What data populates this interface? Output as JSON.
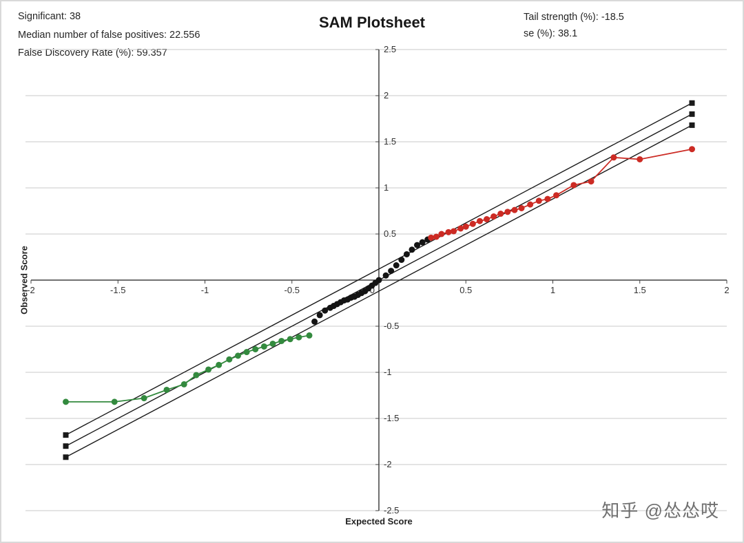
{
  "stats": {
    "significant": "Significant: 38",
    "median_false_positives": "Median number of false positives: 22.556",
    "fdr": "False Discovery Rate (%): 59.357",
    "tail_strength": "Tail strength (%): -18.5",
    "se": "se (%): 38.1"
  },
  "watermark": "知乎 @怂怂哎",
  "chart_data": {
    "type": "scatter",
    "title": "SAM Plotsheet",
    "xlabel": "Expected Score",
    "ylabel": "Observed Score",
    "xlim": [
      -2,
      2
    ],
    "ylim": [
      -2.5,
      2.5
    ],
    "tick_step": 0.5,
    "grid": "horizontal",
    "legend": "none",
    "xticks": [
      "-2",
      "-1.5",
      "-1",
      "-0.5",
      "0",
      "0.5",
      "1",
      "1.5",
      "2"
    ],
    "yticks": [
      "2.5",
      "2",
      "1.5",
      "1",
      "0.5",
      "-0.5",
      "-1",
      "-1.5",
      "-2",
      "-2.5"
    ],
    "colors": {
      "grid": "#c9c9c9",
      "axis": "#404040",
      "line": "#1a1a1a",
      "nonsignificant": "#141414",
      "positive": "#cc2b24",
      "negative": "#338a3e"
    },
    "series": [
      {
        "name": "upper-band-line",
        "color": "#1a1a1a",
        "line": true,
        "width": 1.4,
        "marker": "square",
        "points": [
          [
            -1.8,
            -1.68
          ],
          [
            1.8,
            1.92
          ]
        ]
      },
      {
        "name": "identity-line",
        "color": "#1a1a1a",
        "line": true,
        "width": 1.4,
        "marker": "square",
        "points": [
          [
            -1.8,
            -1.8
          ],
          [
            1.8,
            1.8
          ]
        ]
      },
      {
        "name": "lower-band-line",
        "color": "#1a1a1a",
        "line": true,
        "width": 1.4,
        "marker": "square",
        "points": [
          [
            -1.8,
            -1.92
          ],
          [
            1.8,
            1.68
          ]
        ]
      },
      {
        "name": "significant-negative-genes",
        "color": "#338a3e",
        "line": true,
        "width": 1.8,
        "marker": "circle",
        "points": [
          [
            -1.8,
            -1.32
          ],
          [
            -1.52,
            -1.32
          ],
          [
            -1.35,
            -1.28
          ],
          [
            -1.22,
            -1.19
          ],
          [
            -1.12,
            -1.13
          ],
          [
            -1.05,
            -1.03
          ],
          [
            -0.98,
            -0.97
          ],
          [
            -0.92,
            -0.92
          ],
          [
            -0.86,
            -0.86
          ],
          [
            -0.81,
            -0.82
          ],
          [
            -0.76,
            -0.78
          ],
          [
            -0.71,
            -0.75
          ],
          [
            -0.66,
            -0.72
          ],
          [
            -0.61,
            -0.69
          ],
          [
            -0.56,
            -0.66
          ],
          [
            -0.51,
            -0.64
          ],
          [
            -0.46,
            -0.62
          ],
          [
            -0.4,
            -0.6
          ]
        ]
      },
      {
        "name": "non-significant-genes",
        "color": "#141414",
        "line": false,
        "marker": "circle",
        "points": [
          [
            -0.37,
            -0.45
          ],
          [
            -0.34,
            -0.38
          ],
          [
            -0.31,
            -0.33
          ],
          [
            -0.28,
            -0.3
          ],
          [
            -0.26,
            -0.28
          ],
          [
            -0.24,
            -0.26
          ],
          [
            -0.22,
            -0.24
          ],
          [
            -0.2,
            -0.22
          ],
          [
            -0.18,
            -0.21
          ],
          [
            -0.16,
            -0.19
          ],
          [
            -0.14,
            -0.18
          ],
          [
            -0.12,
            -0.16
          ],
          [
            -0.1,
            -0.14
          ],
          [
            -0.08,
            -0.12
          ],
          [
            -0.06,
            -0.09
          ],
          [
            -0.04,
            -0.06
          ],
          [
            -0.02,
            -0.03
          ],
          [
            0.0,
            0.0
          ],
          [
            0.04,
            0.05
          ],
          [
            0.07,
            0.1
          ],
          [
            0.1,
            0.16
          ],
          [
            0.13,
            0.22
          ],
          [
            0.16,
            0.28
          ],
          [
            0.19,
            0.33
          ],
          [
            0.22,
            0.38
          ],
          [
            0.25,
            0.41
          ],
          [
            0.28,
            0.44
          ]
        ]
      },
      {
        "name": "significant-positive-genes",
        "color": "#cc2b24",
        "line": true,
        "width": 1.8,
        "marker": "circle",
        "points": [
          [
            0.3,
            0.46
          ],
          [
            0.33,
            0.47
          ],
          [
            0.36,
            0.5
          ],
          [
            0.4,
            0.52
          ],
          [
            0.43,
            0.53
          ],
          [
            0.47,
            0.56
          ],
          [
            0.5,
            0.58
          ],
          [
            0.54,
            0.61
          ],
          [
            0.58,
            0.64
          ],
          [
            0.62,
            0.66
          ],
          [
            0.66,
            0.69
          ],
          [
            0.7,
            0.72
          ],
          [
            0.74,
            0.74
          ],
          [
            0.78,
            0.76
          ],
          [
            0.82,
            0.78
          ],
          [
            0.87,
            0.82
          ],
          [
            0.92,
            0.86
          ],
          [
            0.97,
            0.88
          ],
          [
            1.02,
            0.92
          ],
          [
            1.12,
            1.03
          ],
          [
            1.22,
            1.07
          ],
          [
            1.35,
            1.33
          ],
          [
            1.5,
            1.31
          ],
          [
            1.8,
            1.42
          ]
        ]
      }
    ]
  }
}
